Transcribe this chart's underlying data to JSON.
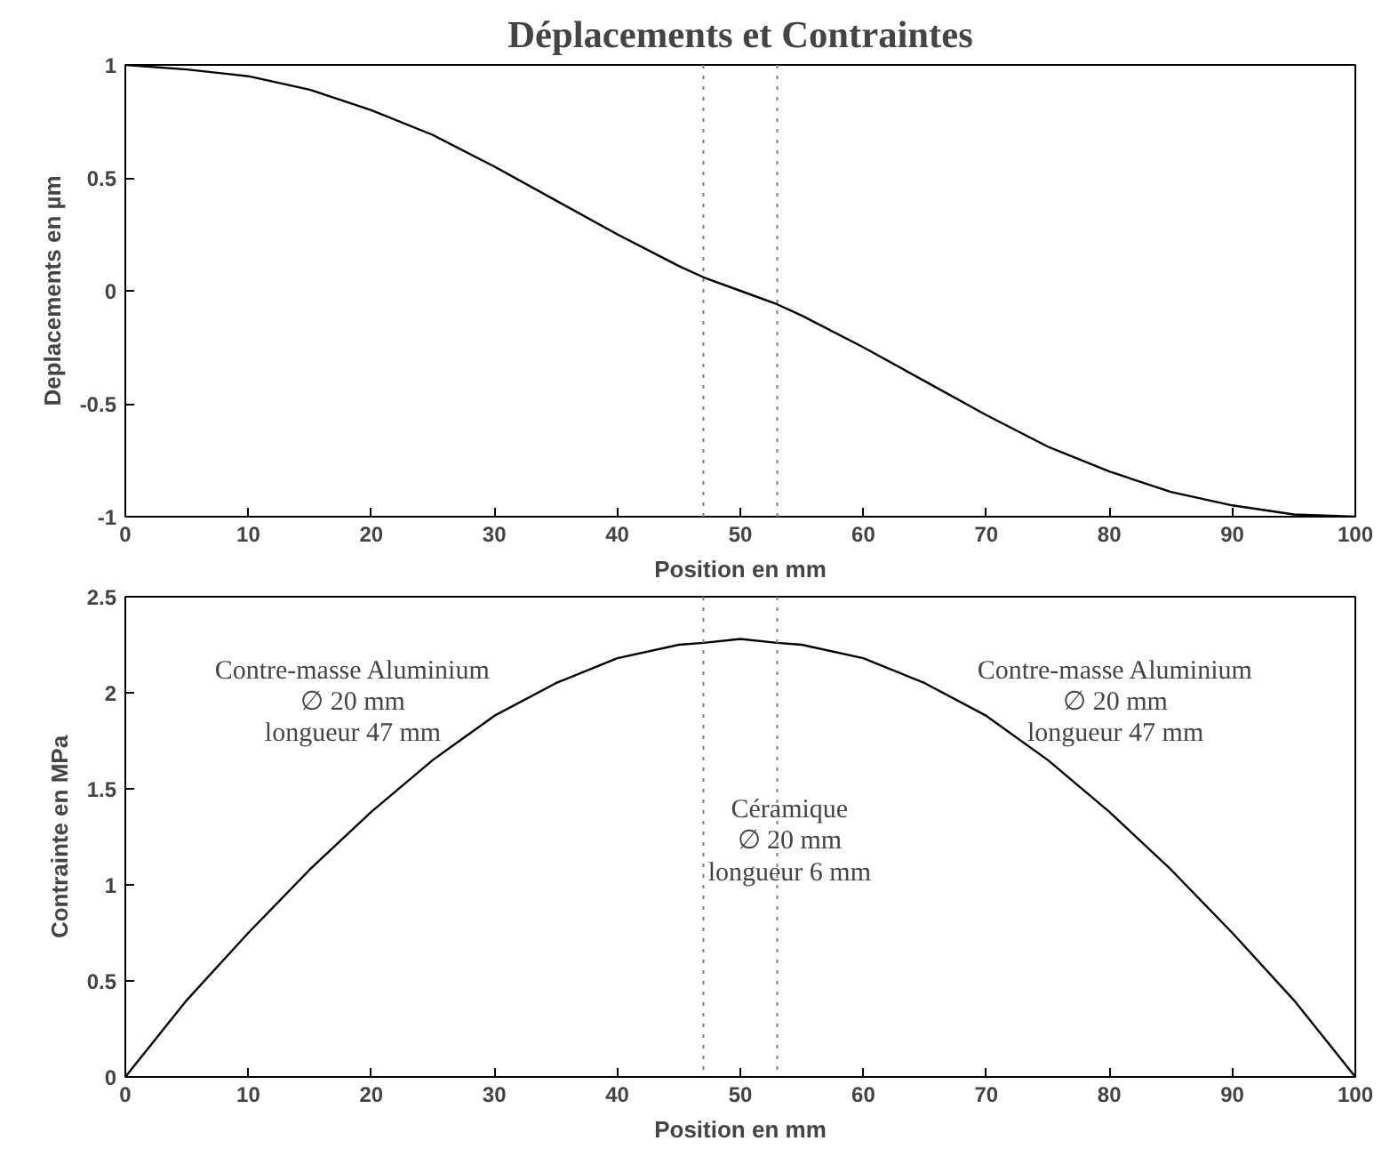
{
  "chart_data": [
    {
      "type": "line",
      "title": "Déplacements et Contraintes",
      "xlabel": "Position en mm",
      "ylabel": "Deplacements en µm",
      "color": "#000000",
      "grid": false,
      "x": [
        0,
        5,
        10,
        15,
        20,
        25,
        30,
        35,
        40,
        45,
        47,
        50,
        53,
        55,
        60,
        65,
        70,
        75,
        80,
        85,
        90,
        95,
        100
      ],
      "values": [
        1,
        0.98,
        0.95,
        0.89,
        0.8,
        0.69,
        0.55,
        0.4,
        0.25,
        0.11,
        0.06,
        0.0,
        -0.06,
        -0.11,
        -0.25,
        -0.4,
        -0.55,
        -0.69,
        -0.8,
        -0.89,
        -0.95,
        -0.99,
        -1
      ],
      "xlim": [
        0,
        100
      ],
      "ylim": [
        -1,
        1
      ],
      "xticks": [
        0,
        10,
        20,
        30,
        40,
        50,
        60,
        70,
        80,
        90,
        100
      ],
      "yticks": [
        -1,
        -0.5,
        0,
        0.5,
        1
      ],
      "ref_lines": [
        {
          "axis": "x",
          "value": 47,
          "color": "#808080",
          "line_style": "dotted"
        },
        {
          "axis": "x",
          "value": 53,
          "color": "#808080",
          "line_style": "dotted"
        }
      ]
    },
    {
      "type": "line",
      "xlabel": "Position en mm",
      "ylabel": "Contrainte en MPa",
      "color": "#000000",
      "grid": false,
      "x": [
        0,
        5,
        10,
        15,
        20,
        25,
        30,
        35,
        40,
        45,
        47,
        50,
        53,
        55,
        60,
        65,
        70,
        75,
        80,
        85,
        90,
        95,
        100
      ],
      "values": [
        0,
        0.4,
        0.75,
        1.08,
        1.38,
        1.65,
        1.88,
        2.05,
        2.18,
        2.25,
        2.26,
        2.28,
        2.26,
        2.25,
        2.18,
        2.05,
        1.88,
        1.65,
        1.38,
        1.08,
        0.75,
        0.4,
        0
      ],
      "xlim": [
        0,
        100
      ],
      "ylim": [
        0,
        2.5
      ],
      "xticks": [
        0,
        10,
        20,
        30,
        40,
        50,
        60,
        70,
        80,
        90,
        100
      ],
      "yticks": [
        0,
        0.5,
        1,
        1.5,
        2,
        2.5
      ],
      "ref_lines": [
        {
          "axis": "x",
          "value": 47,
          "color": "#808080",
          "line_style": "dotted"
        },
        {
          "axis": "x",
          "value": 53,
          "color": "#808080",
          "line_style": "dotted"
        }
      ],
      "annotations": [
        "Contre-masse Aluminium\n∅ 20 mm\nlongueur 47 mm",
        "Céramique\n∅ 20 mm\nlongueur 6 mm",
        "Contre-masse Aluminium\n∅ 20 mm\nlongueur 47 mm"
      ]
    }
  ]
}
